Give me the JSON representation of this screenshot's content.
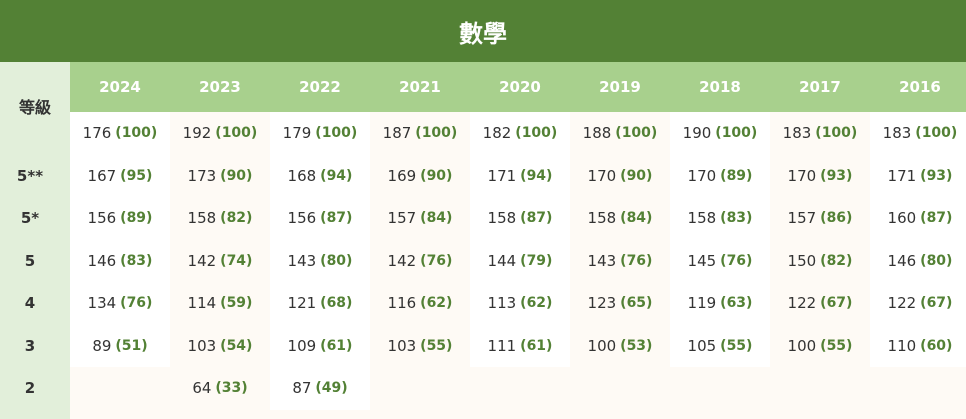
{
  "title": "數學",
  "grade_header": "等級",
  "grades": [
    "",
    "5**",
    "5*",
    "5",
    "4",
    "3",
    "2"
  ],
  "years": [
    {
      "year": "2024",
      "cells": [
        [
          "176",
          "(100)"
        ],
        [
          "167",
          "(95)"
        ],
        [
          "156",
          "(89)"
        ],
        [
          "146",
          "(83)"
        ],
        [
          "134",
          "(76)"
        ],
        [
          "89",
          "(51)"
        ]
      ]
    },
    {
      "year": "2023",
      "cells": [
        [
          "192",
          "(100)"
        ],
        [
          "173",
          "(90)"
        ],
        [
          "158",
          "(82)"
        ],
        [
          "142",
          "(74)"
        ],
        [
          "114",
          "(59)"
        ],
        [
          "103",
          "(54)"
        ],
        [
          "64",
          "(33)"
        ]
      ]
    },
    {
      "year": "2022",
      "cells": [
        [
          "179",
          "(100)"
        ],
        [
          "168",
          "(94)"
        ],
        [
          "156",
          "(87)"
        ],
        [
          "143",
          "(80)"
        ],
        [
          "121",
          "(68)"
        ],
        [
          "109",
          "(61)"
        ],
        [
          "87",
          "(49)"
        ]
      ]
    },
    {
      "year": "2021",
      "cells": [
        [
          "187",
          "(100)"
        ],
        [
          "169",
          "(90)"
        ],
        [
          "157",
          "(84)"
        ],
        [
          "142",
          "(76)"
        ],
        [
          "116",
          "(62)"
        ],
        [
          "103",
          "(55)"
        ]
      ]
    },
    {
      "year": "2020",
      "cells": [
        [
          "182",
          "(100)"
        ],
        [
          "171",
          "(94)"
        ],
        [
          "158",
          "(87)"
        ],
        [
          "144",
          "(79)"
        ],
        [
          "113",
          "(62)"
        ],
        [
          "111",
          "(61)"
        ]
      ]
    },
    {
      "year": "2019",
      "cells": [
        [
          "188",
          "(100)"
        ],
        [
          "170",
          "(90)"
        ],
        [
          "158",
          "(84)"
        ],
        [
          "143",
          "(76)"
        ],
        [
          "123",
          "(65)"
        ],
        [
          "100",
          "(53)"
        ]
      ]
    },
    {
      "year": "2018",
      "cells": [
        [
          "190",
          "(100)"
        ],
        [
          "170",
          "(89)"
        ],
        [
          "158",
          "(83)"
        ],
        [
          "145",
          "(76)"
        ],
        [
          "119",
          "(63)"
        ],
        [
          "105",
          "(55)"
        ]
      ]
    },
    {
      "year": "2017",
      "cells": [
        [
          "183",
          "(100)"
        ],
        [
          "170",
          "(93)"
        ],
        [
          "157",
          "(86)"
        ],
        [
          "150",
          "(82)"
        ],
        [
          "122",
          "(67)"
        ],
        [
          "100",
          "(55)"
        ]
      ]
    },
    {
      "year": "2016",
      "cells": [
        [
          "183",
          "(100)"
        ],
        [
          "171",
          "(93)"
        ],
        [
          "160",
          "(87)"
        ],
        [
          "146",
          "(80)"
        ],
        [
          "122",
          "(67)"
        ],
        [
          "110",
          "(60)"
        ]
      ]
    }
  ],
  "colors": {
    "title_bg": "#538135",
    "header_bg": "#a8d08d",
    "grade_col_bg": "#e2efda",
    "pct_text": "#538135",
    "alt_col_bg": "#fefaf5"
  }
}
